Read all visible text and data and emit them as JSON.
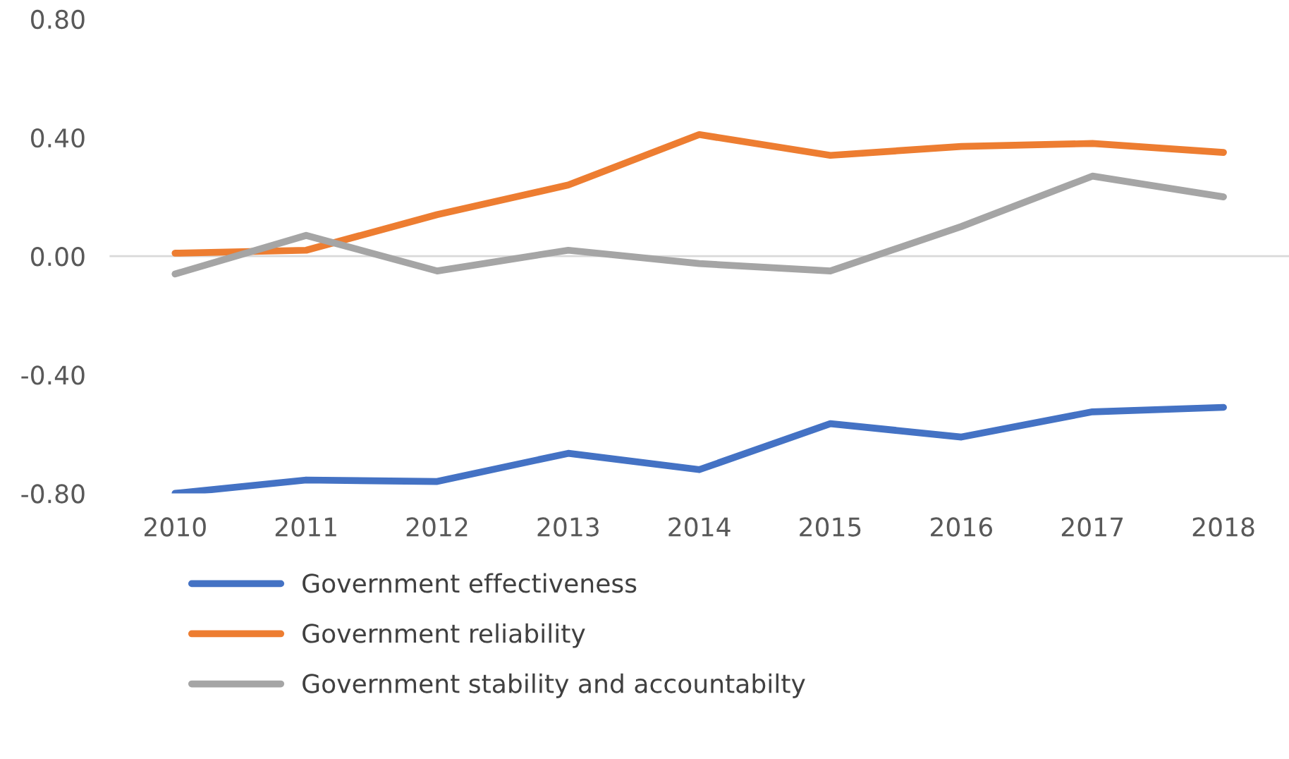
{
  "chart_data": {
    "type": "line",
    "categories": [
      "2010",
      "2011",
      "2012",
      "2013",
      "2014",
      "2015",
      "2016",
      "2017",
      "2018"
    ],
    "series": [
      {
        "name": "Government effectiveness",
        "color": "#4472c4",
        "values": [
          -0.8,
          -0.755,
          -0.76,
          -0.665,
          -0.72,
          -0.565,
          -0.61,
          -0.525,
          -0.51
        ]
      },
      {
        "name": "Government reliability",
        "color": "#ed7d31",
        "values": [
          0.01,
          0.02,
          0.14,
          0.24,
          0.41,
          0.34,
          0.37,
          0.38,
          0.35
        ]
      },
      {
        "name": "Government stability and accountabilty",
        "color": "#a5a5a5",
        "values": [
          -0.06,
          0.07,
          -0.05,
          0.02,
          -0.025,
          -0.05,
          0.1,
          0.27,
          0.2
        ]
      }
    ],
    "ylim": [
      -0.8,
      0.8
    ],
    "yticks": [
      {
        "value": -0.8,
        "label": "-0.80"
      },
      {
        "value": -0.4,
        "label": "-0.40"
      },
      {
        "value": 0,
        "label": "0.00"
      },
      {
        "value": 0.4,
        "label": "0.40"
      },
      {
        "value": 0.8,
        "label": "0.80"
      }
    ],
    "ref_lines": [
      {
        "axis": "y",
        "value": 0,
        "color": "#d9d9d9"
      }
    ],
    "grid": false,
    "legend": "bottom",
    "marker": "none",
    "line_style": "solid"
  }
}
